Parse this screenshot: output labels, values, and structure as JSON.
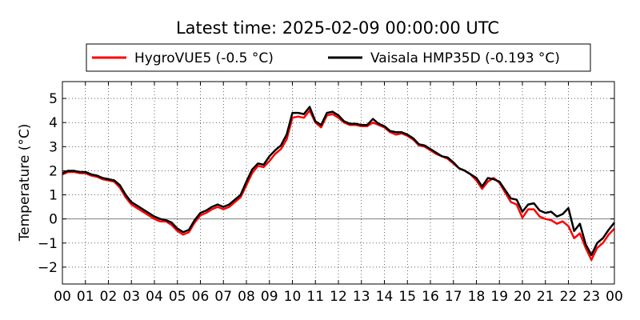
{
  "chart_data": {
    "type": "line",
    "title": "Latest time: 2025-02-09 00:00:00 UTC",
    "xlabel": "",
    "ylabel": "Temperature (°C)",
    "xlim": [
      0,
      24
    ],
    "ylim": [
      -2.7,
      5.7
    ],
    "grid": true,
    "legend": "top-center",
    "x_tick_values": [
      0,
      1,
      2,
      3,
      4,
      5,
      6,
      7,
      8,
      9,
      10,
      11,
      12,
      13,
      14,
      15,
      16,
      17,
      18,
      19,
      20,
      21,
      22,
      23,
      24
    ],
    "x_tick_labels": [
      "00",
      "01",
      "02",
      "03",
      "04",
      "05",
      "06",
      "07",
      "08",
      "09",
      "10",
      "11",
      "12",
      "13",
      "14",
      "15",
      "16",
      "17",
      "18",
      "19",
      "20",
      "21",
      "22",
      "23",
      "00"
    ],
    "y_tick_values": [
      -2,
      -1,
      0,
      1,
      2,
      3,
      4,
      5
    ],
    "y_tick_labels": [
      "−2",
      "−1",
      "0",
      "1",
      "2",
      "3",
      "4",
      "5"
    ],
    "zero_line_color": "#808080",
    "series": [
      {
        "name": "HygroVUE5 (-0.5 °C)",
        "color": "#ff0000",
        "x": [
          0,
          0.25,
          0.5,
          0.75,
          1,
          1.25,
          1.5,
          1.75,
          2,
          2.25,
          2.5,
          2.75,
          3,
          3.25,
          3.5,
          3.75,
          4,
          4.25,
          4.5,
          4.75,
          5,
          5.25,
          5.5,
          5.75,
          6,
          6.25,
          6.5,
          6.75,
          7,
          7.25,
          7.5,
          7.75,
          8,
          8.25,
          8.5,
          8.75,
          9,
          9.25,
          9.5,
          9.75,
          10,
          10.25,
          10.5,
          10.75,
          11,
          11.25,
          11.5,
          11.75,
          12,
          12.25,
          12.5,
          12.75,
          13,
          13.25,
          13.5,
          13.75,
          14,
          14.25,
          14.5,
          14.75,
          15,
          15.25,
          15.5,
          15.75,
          16,
          16.25,
          16.5,
          16.75,
          17,
          17.25,
          17.5,
          17.75,
          18,
          18.25,
          18.5,
          18.75,
          19,
          19.25,
          19.5,
          19.75,
          20,
          20.25,
          20.5,
          20.75,
          21,
          21.25,
          21.5,
          21.75,
          22,
          22.25,
          22.5,
          22.75,
          23,
          23.25,
          23.5,
          23.75,
          24
        ],
        "y": [
          1.85,
          1.95,
          1.95,
          1.9,
          1.9,
          1.8,
          1.75,
          1.65,
          1.6,
          1.55,
          1.3,
          0.9,
          0.6,
          0.45,
          0.3,
          0.15,
          0.0,
          -0.1,
          -0.1,
          -0.25,
          -0.5,
          -0.65,
          -0.55,
          -0.15,
          0.15,
          0.25,
          0.4,
          0.5,
          0.4,
          0.5,
          0.7,
          0.9,
          1.4,
          1.9,
          2.2,
          2.15,
          2.4,
          2.7,
          2.9,
          3.3,
          4.2,
          4.25,
          4.2,
          4.5,
          4.0,
          3.8,
          4.3,
          4.35,
          4.2,
          4.0,
          3.9,
          3.9,
          3.85,
          3.85,
          4.0,
          3.9,
          3.8,
          3.6,
          3.5,
          3.55,
          3.45,
          3.3,
          3.05,
          3.0,
          2.85,
          2.7,
          2.6,
          2.5,
          2.3,
          2.1,
          2.0,
          1.85,
          1.6,
          1.25,
          1.55,
          1.7,
          1.5,
          1.1,
          0.7,
          0.6,
          0.05,
          0.4,
          0.4,
          0.1,
          0.0,
          -0.05,
          -0.2,
          -0.1,
          -0.3,
          -0.8,
          -0.6,
          -1.2,
          -1.7,
          -1.2,
          -1.0,
          -0.65,
          -0.4
        ]
      },
      {
        "name": "Vaisala HMP35D (-0.193 °C)",
        "color": "#000000",
        "x": [
          0,
          0.25,
          0.5,
          0.75,
          1,
          1.25,
          1.5,
          1.75,
          2,
          2.25,
          2.5,
          2.75,
          3,
          3.25,
          3.5,
          3.75,
          4,
          4.25,
          4.5,
          4.75,
          5,
          5.25,
          5.5,
          5.75,
          6,
          6.25,
          6.5,
          6.75,
          7,
          7.25,
          7.5,
          7.75,
          8,
          8.25,
          8.5,
          8.75,
          9,
          9.25,
          9.5,
          9.75,
          10,
          10.25,
          10.5,
          10.75,
          11,
          11.25,
          11.5,
          11.75,
          12,
          12.25,
          12.5,
          12.75,
          13,
          13.25,
          13.5,
          13.75,
          14,
          14.25,
          14.5,
          14.75,
          15,
          15.25,
          15.5,
          15.75,
          16,
          16.25,
          16.5,
          16.75,
          17,
          17.25,
          17.5,
          17.75,
          18,
          18.25,
          18.5,
          18.75,
          19,
          19.25,
          19.5,
          19.75,
          20,
          20.25,
          20.5,
          20.75,
          21,
          21.25,
          21.5,
          21.75,
          22,
          22.25,
          22.5,
          22.75,
          23,
          23.25,
          23.5,
          23.75,
          24
        ],
        "y": [
          1.9,
          2.0,
          2.0,
          1.95,
          1.95,
          1.85,
          1.8,
          1.7,
          1.65,
          1.6,
          1.4,
          1.0,
          0.7,
          0.55,
          0.4,
          0.25,
          0.1,
          0.0,
          -0.05,
          -0.15,
          -0.4,
          -0.55,
          -0.45,
          -0.05,
          0.25,
          0.35,
          0.5,
          0.6,
          0.5,
          0.6,
          0.8,
          1.0,
          1.55,
          2.05,
          2.3,
          2.25,
          2.6,
          2.85,
          3.05,
          3.5,
          4.4,
          4.4,
          4.35,
          4.65,
          4.05,
          3.9,
          4.4,
          4.45,
          4.3,
          4.05,
          3.95,
          3.95,
          3.9,
          3.9,
          4.15,
          3.95,
          3.85,
          3.65,
          3.6,
          3.6,
          3.5,
          3.35,
          3.1,
          3.05,
          2.9,
          2.75,
          2.6,
          2.55,
          2.35,
          2.1,
          2.0,
          1.85,
          1.7,
          1.35,
          1.7,
          1.65,
          1.55,
          1.2,
          0.85,
          0.8,
          0.3,
          0.6,
          0.65,
          0.35,
          0.25,
          0.3,
          0.1,
          0.2,
          0.45,
          -0.5,
          -0.2,
          -1.05,
          -1.5,
          -1.0,
          -0.8,
          -0.45,
          -0.15
        ]
      }
    ]
  }
}
